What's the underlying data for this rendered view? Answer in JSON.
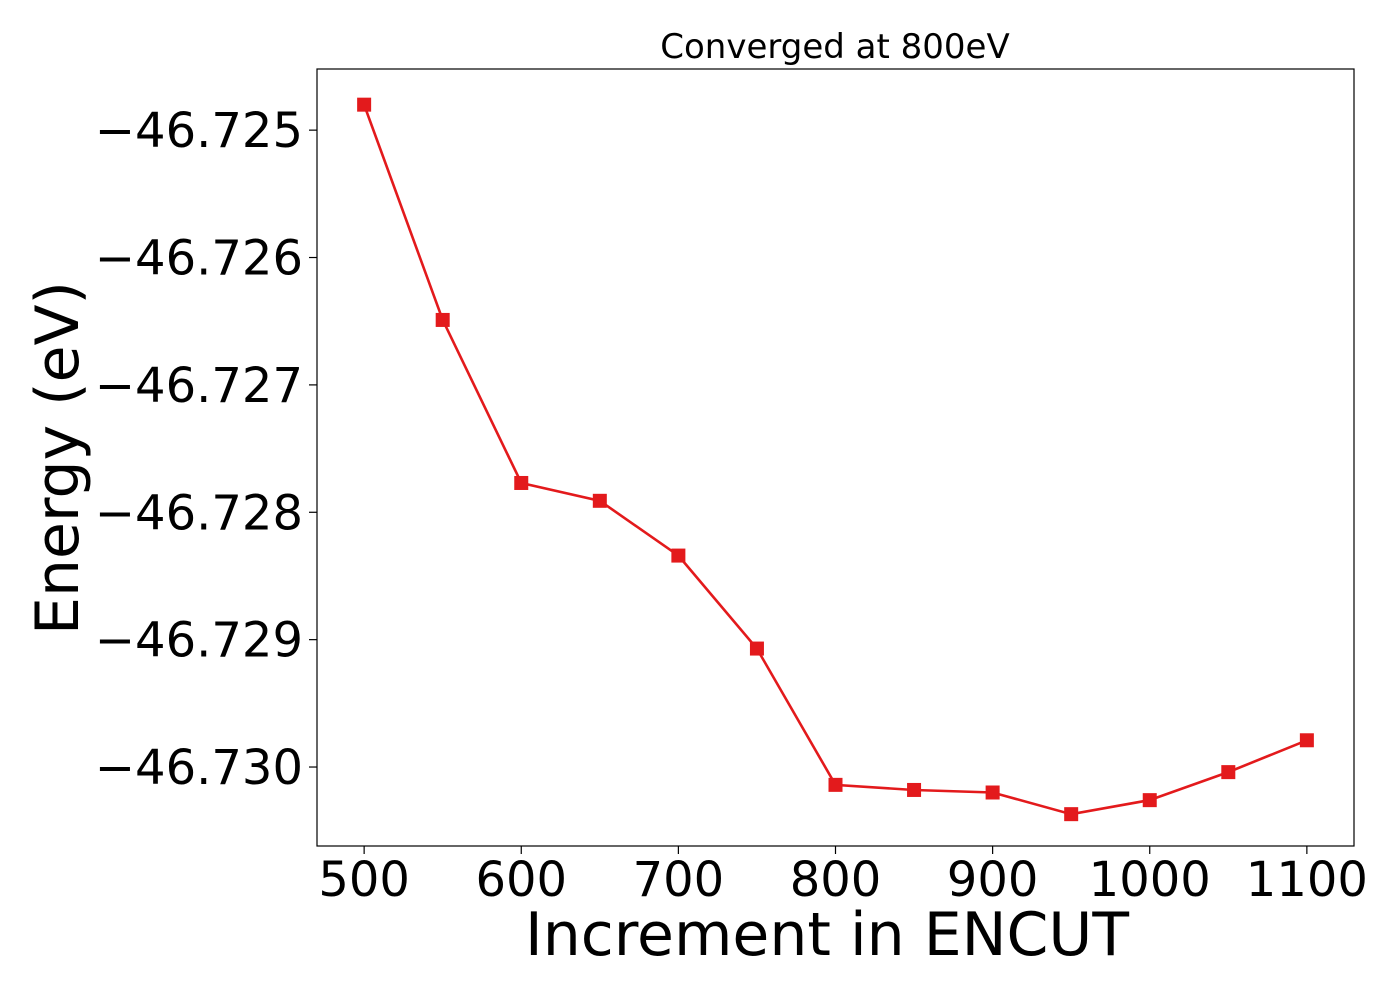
{
  "chart_data": {
    "type": "line",
    "title": "Converged at 800eV",
    "xlabel": "Increment in ENCUT",
    "ylabel": "Energy (eV)",
    "x": [
      500,
      550,
      600,
      650,
      700,
      750,
      800,
      850,
      900,
      950,
      1000,
      1050,
      1100
    ],
    "series": [
      {
        "values": [
          -46.7248,
          -46.72649,
          -46.72777,
          -46.72791,
          -46.72834,
          -46.72907,
          -46.73014,
          -46.73018,
          -46.7302,
          -46.73037,
          -46.73026,
          -46.73004,
          -46.72979
        ],
        "color": "#e31a1c",
        "marker": "square"
      }
    ],
    "x_ticks": [
      500,
      600,
      700,
      800,
      900,
      1000,
      1100
    ],
    "x_tick_labels": [
      "500",
      "600",
      "700",
      "800",
      "900",
      "1000",
      "1100"
    ],
    "y_ticks": [
      -46.725,
      -46.726,
      -46.727,
      -46.728,
      -46.729,
      -46.73
    ],
    "y_tick_labels": [
      "−46.725",
      "−46.726",
      "−46.727",
      "−46.728",
      "−46.729",
      "−46.730"
    ],
    "xlim": [
      470,
      1130
    ],
    "ylim": [
      -46.73062,
      -46.72452
    ],
    "grid": false,
    "legend": "none"
  }
}
